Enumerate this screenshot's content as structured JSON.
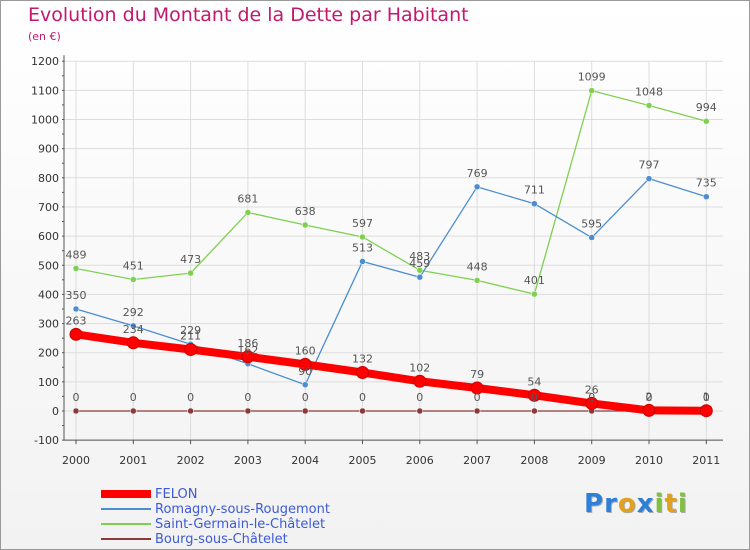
{
  "title": "Evolution du Montant de la Dette par Habitant",
  "unit": "(en €)",
  "colors": {
    "title": "#c2186e",
    "grid": "#dddddd",
    "axis": "#555555",
    "tick": "#333333",
    "label": "#555555"
  },
  "chart_data": {
    "type": "line",
    "title": "Evolution du Montant de la Dette par Habitant",
    "ylabel": "(en €)",
    "xlabel": "",
    "x": [
      "2000",
      "2001",
      "2002",
      "2003",
      "2004",
      "2005",
      "2006",
      "2007",
      "2008",
      "2009",
      "2010",
      "2011"
    ],
    "ylim": [
      -100,
      1200
    ],
    "yticks": [
      -100,
      0,
      100,
      200,
      300,
      400,
      500,
      600,
      700,
      800,
      900,
      1000,
      1100,
      1200
    ],
    "grid": true,
    "series": [
      {
        "name": "FELON",
        "color": "#ff0000",
        "values": [
          263,
          234,
          211,
          186,
          160,
          132,
          102,
          79,
          54,
          26,
          2,
          1
        ]
      },
      {
        "name": "Romagny-sous-Rougemont",
        "color": "#4c8ed0",
        "values": [
          350,
          292,
          229,
          162,
          90,
          513,
          459,
          769,
          711,
          595,
          797,
          735
        ]
      },
      {
        "name": "Saint-Germain-le-Châtelet",
        "color": "#7fd050",
        "values": [
          489,
          451,
          473,
          681,
          638,
          597,
          483,
          448,
          401,
          1099,
          1048,
          994
        ]
      },
      {
        "name": "Bourg-sous-Châtelet",
        "color": "#8b3a3a",
        "values": [
          0,
          0,
          0,
          0,
          0,
          0,
          0,
          0,
          0,
          0,
          0,
          0
        ]
      }
    ]
  },
  "logo": {
    "letters": [
      {
        "ch": "P",
        "color": "#2d7fd8"
      },
      {
        "ch": "r",
        "color": "#2d7fd8"
      },
      {
        "ch": "o",
        "color": "#e0a020"
      },
      {
        "ch": "x",
        "color": "#2d7fd8"
      },
      {
        "ch": "i",
        "color": "#7fc040"
      },
      {
        "ch": "t",
        "color": "#e0a020"
      },
      {
        "ch": "i",
        "color": "#7fc040"
      }
    ]
  }
}
